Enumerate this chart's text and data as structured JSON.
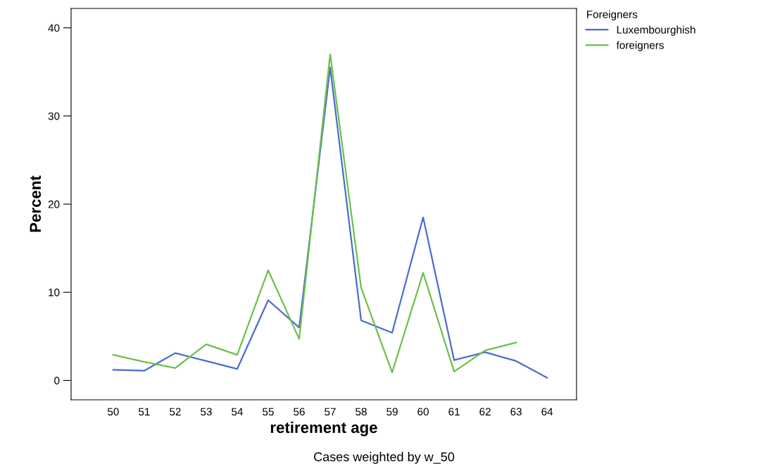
{
  "chart_data": {
    "type": "line",
    "xlabel": "retirement age",
    "ylabel": "Percent",
    "legend_title": "Foreigners",
    "categories": [
      "50",
      "51",
      "52",
      "53",
      "54",
      "55",
      "56",
      "57",
      "58",
      "59",
      "60",
      "61",
      "62",
      "63",
      "64"
    ],
    "series": [
      {
        "name": "Luxembourghish",
        "color": "#4a6ccf",
        "values": [
          1.2,
          1.1,
          3.1,
          2.2,
          1.3,
          9.1,
          6.0,
          35.5,
          6.8,
          5.4,
          18.5,
          2.3,
          3.2,
          2.2,
          0.3
        ]
      },
      {
        "name": "foreigners",
        "color": "#6cc04a",
        "values": [
          2.9,
          2.1,
          1.4,
          4.1,
          2.9,
          12.5,
          4.7,
          37,
          10.5,
          0.9,
          12.2,
          1.0,
          3.4,
          4.3,
          null
        ]
      }
    ],
    "ylim": [
      -2.2,
      42.2
    ],
    "yticks": [
      0,
      10,
      20,
      30,
      40
    ],
    "grid": false,
    "legend": "top right",
    "marker": "none",
    "line_style": "solid",
    "annotations": [
      "Cases weighted by w_50"
    ]
  }
}
